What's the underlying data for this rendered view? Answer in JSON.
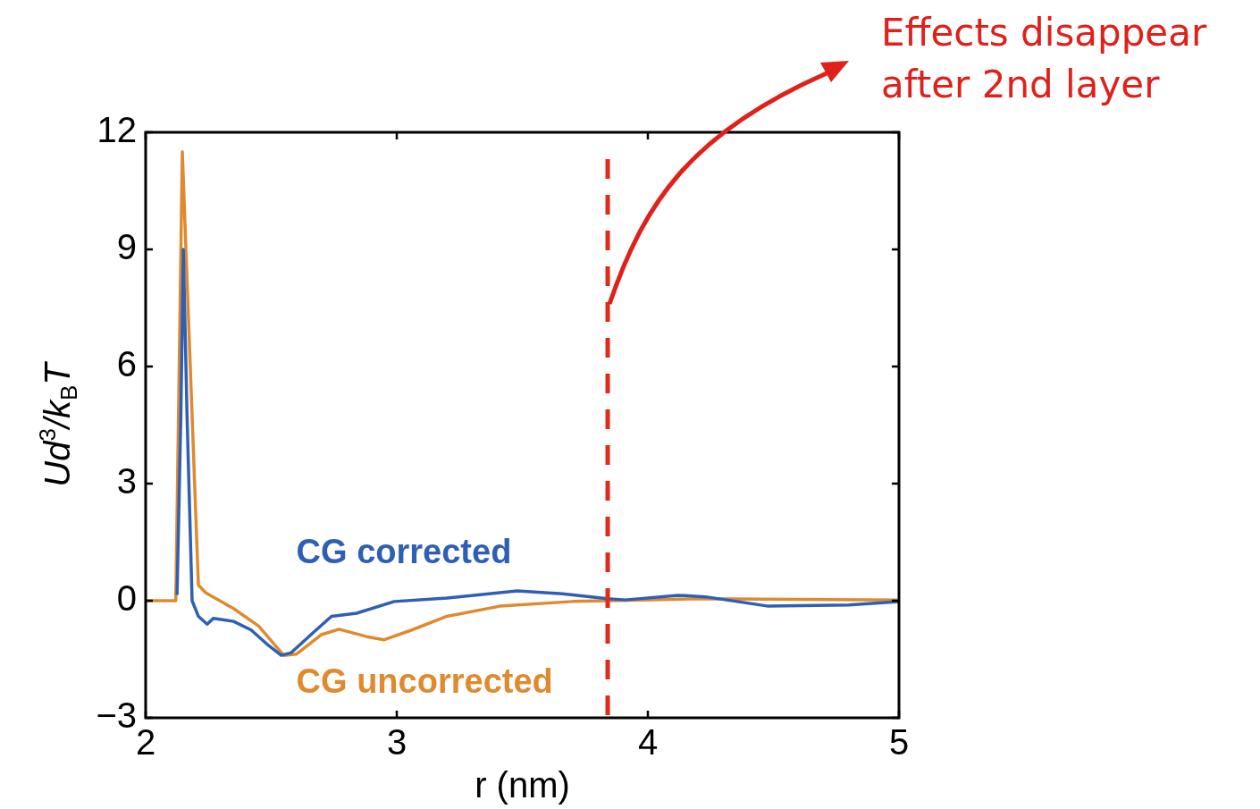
{
  "chart_data": {
    "type": "line",
    "xlabel": "r (nm)",
    "ylabel": "Ud$^{3}$/k$_{B}$T",
    "annotations": [
      "Effects disappear after 2nd layer"
    ],
    "xlim": [
      2,
      5
    ],
    "xticks": [
      2,
      3,
      4,
      5
    ],
    "ylim": [
      -3,
      12
    ],
    "yticks": [
      {
        "value": -3,
        "label": "−3"
      },
      0,
      3,
      6,
      9,
      12
    ],
    "grid": false,
    "legend": false,
    "marker": "none",
    "line_style": "solid",
    "ref_lines": [
      {
        "axis": "x",
        "value": 3.84,
        "color": "#e02a1a",
        "line_style": "dashed"
      }
    ],
    "series": [
      {
        "name": "CG corrected",
        "color": "#2f5fb5",
        "x": [
          2.125,
          2.14,
          2.15,
          2.165,
          2.185,
          2.21,
          2.245,
          2.27,
          2.35,
          2.42,
          2.49,
          2.54,
          2.58,
          2.67,
          2.74,
          2.84,
          2.99,
          3.2,
          3.48,
          3.66,
          3.84,
          3.91,
          4.12,
          4.23,
          4.48,
          4.8,
          5
        ],
        "values": [
          0.15,
          4.7,
          9,
          4.7,
          0,
          -0.4,
          -0.6,
          -0.45,
          -0.53,
          -0.75,
          -1.15,
          -1.4,
          -1.33,
          -0.8,
          -0.4,
          -0.32,
          -0.02,
          0.07,
          0.25,
          0.18,
          0.05,
          0.02,
          0.14,
          0.1,
          -0.14,
          -0.11,
          -0.02
        ]
      },
      {
        "name": "CG uncorrected",
        "color": "#e08a30",
        "x": [
          2,
          2.12,
          2.146,
          2.21,
          2.24,
          2.35,
          2.45,
          2.55,
          2.6,
          2.7,
          2.77,
          2.88,
          2.95,
          3.06,
          3.2,
          3.41,
          3.7,
          3.84,
          4.2,
          5
        ],
        "values": [
          0,
          0,
          11.5,
          0.4,
          0.2,
          -0.2,
          -0.65,
          -1.4,
          -1.37,
          -0.87,
          -0.73,
          -0.92,
          -1,
          -0.75,
          -0.4,
          -0.14,
          -0.02,
          0,
          0.05,
          0.02
        ]
      }
    ]
  }
}
